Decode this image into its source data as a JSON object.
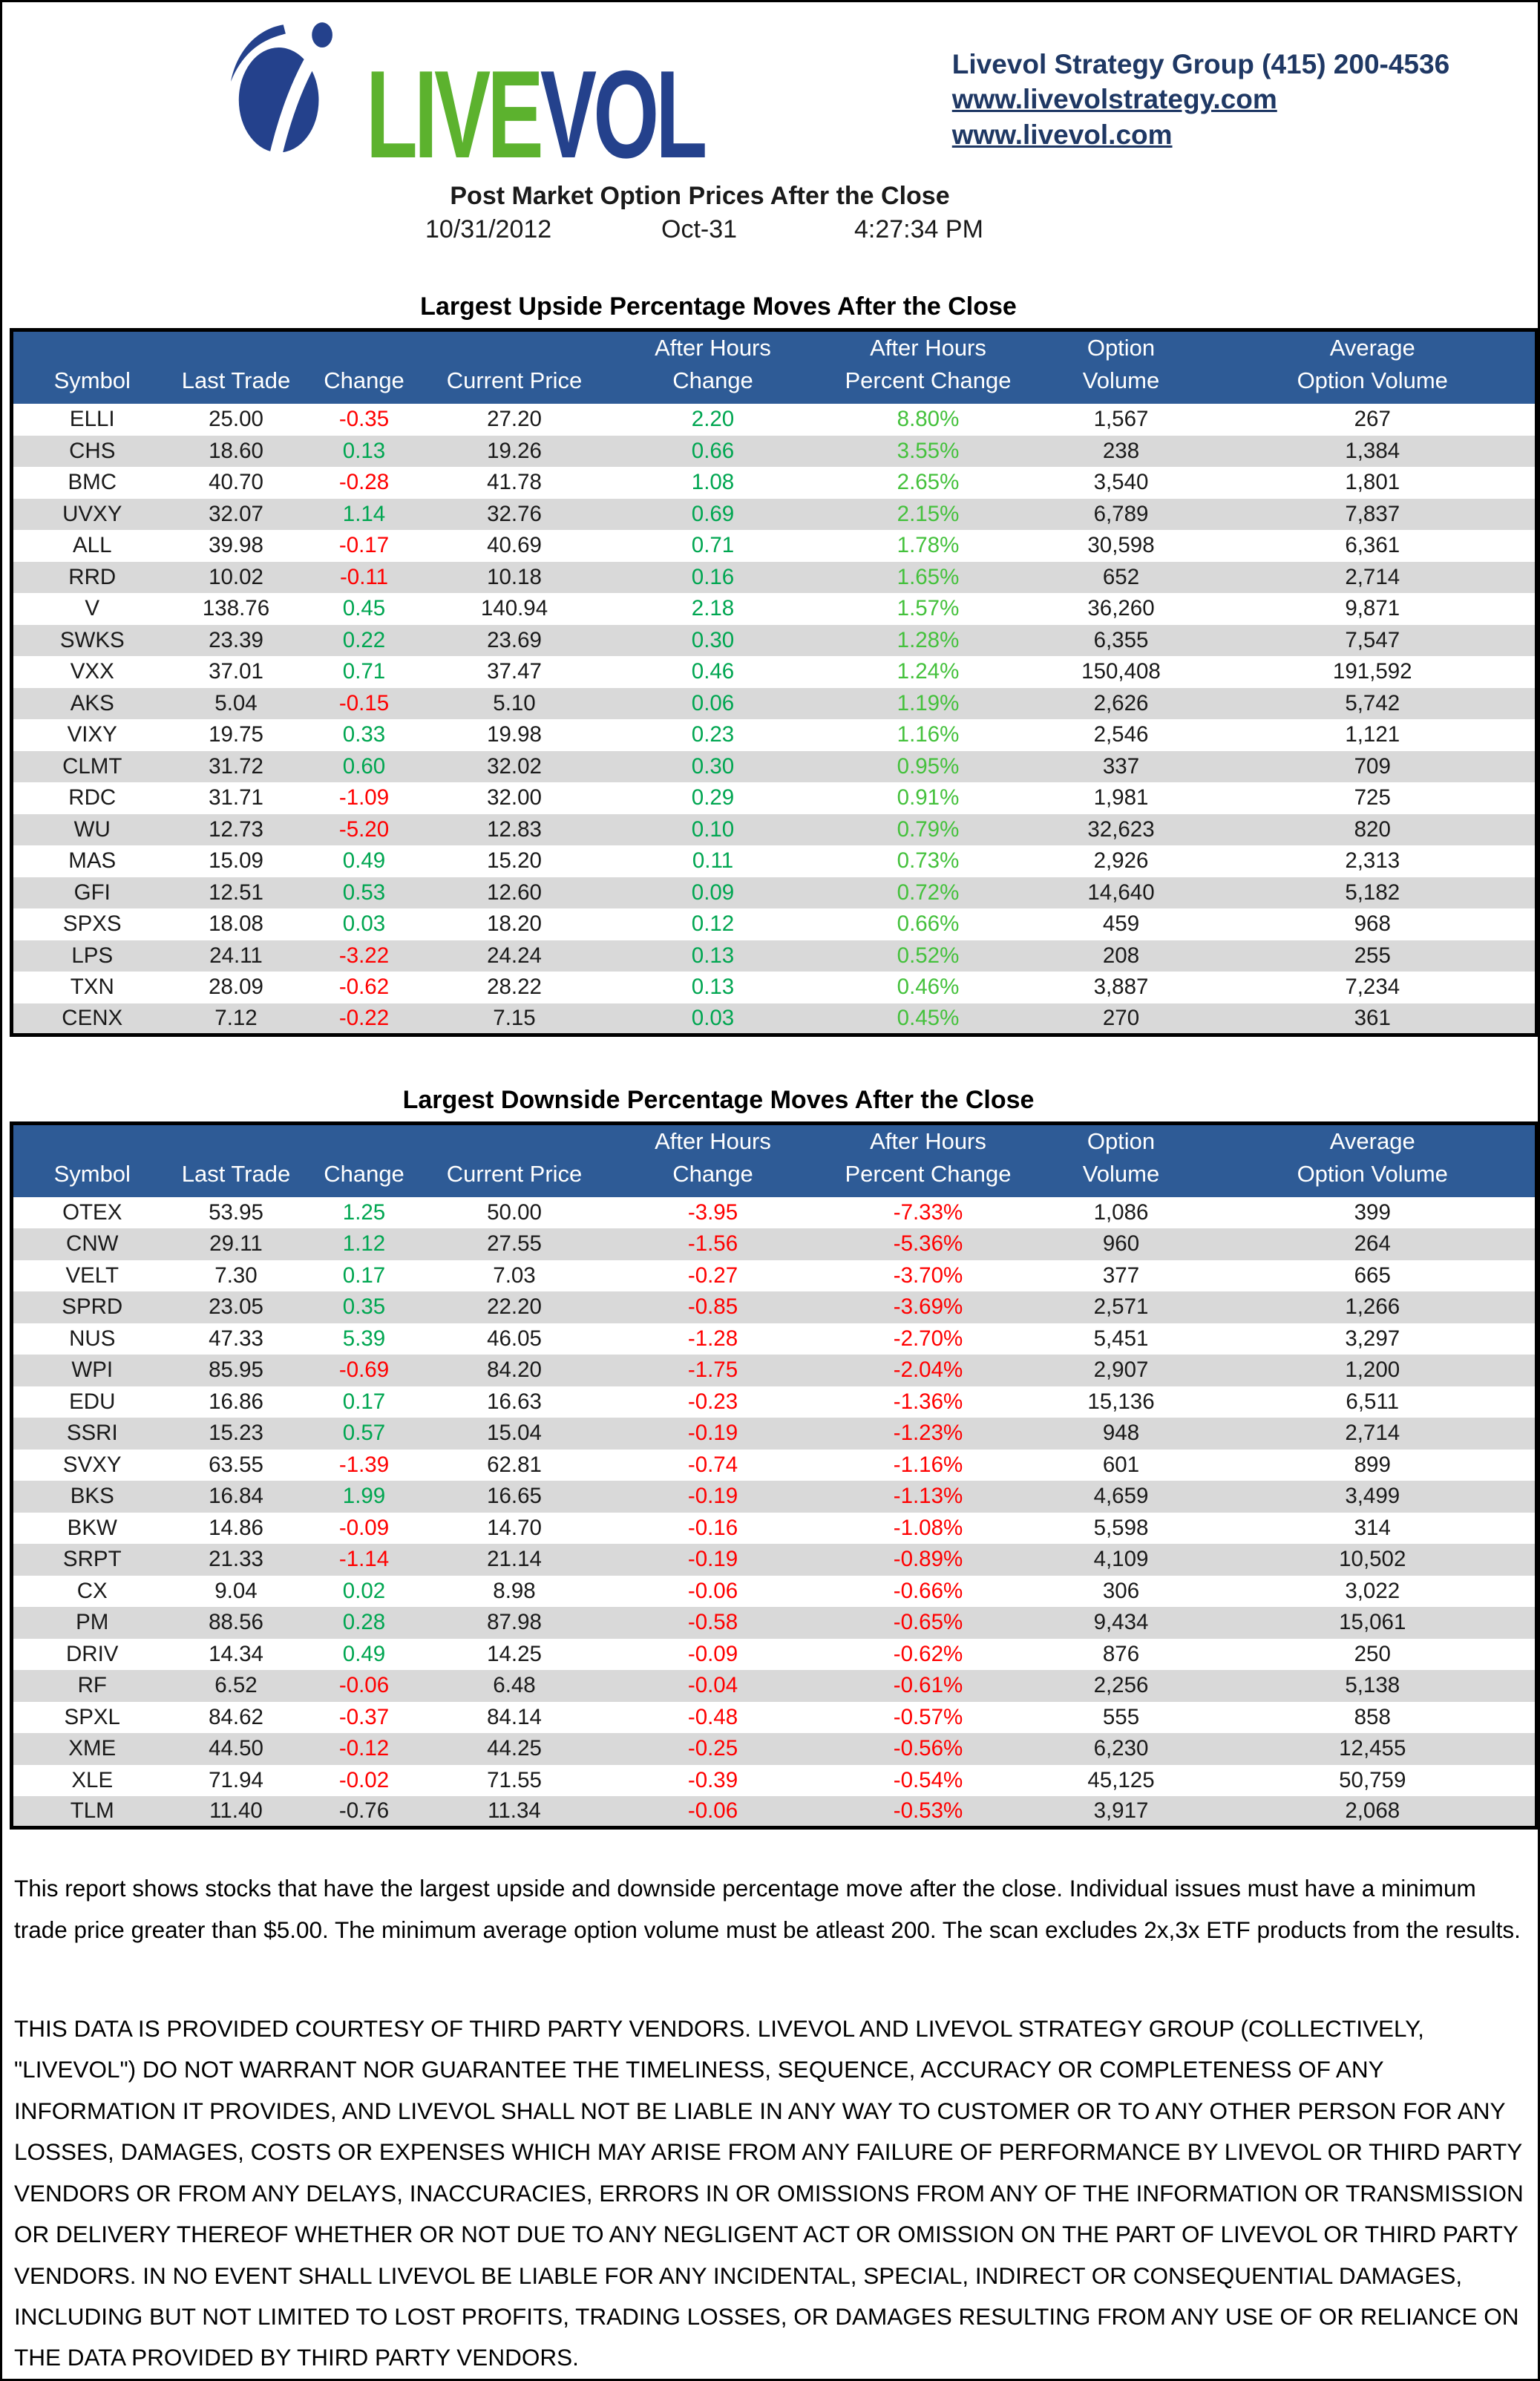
{
  "header": {
    "logo": {
      "live": "LIVE",
      "vol": "VOL"
    },
    "contact": {
      "line1": "Livevol Strategy Group (415) 200-4536",
      "link1": "www.livevolstrategy.com",
      "link2": "www.livevol.com"
    }
  },
  "report": {
    "title": "Post Market Option Prices After the Close",
    "date": "10/31/2012",
    "date_short": "Oct-31",
    "time": "4:27:34 PM"
  },
  "columns": [
    [
      "",
      "Symbol"
    ],
    [
      "",
      "Last Trade"
    ],
    [
      "",
      "Change"
    ],
    [
      "",
      "Current Price"
    ],
    [
      "After Hours",
      "Change"
    ],
    [
      "After Hours",
      "Percent Change"
    ],
    [
      "Option",
      "Volume"
    ],
    [
      "Average",
      "Option Volume"
    ]
  ],
  "colors": {
    "red": "#FF0000",
    "green": "#00A651",
    "light_green": "#44C13C",
    "text": "#1A1A1A",
    "header_bg": "#2E5B96",
    "row_alt": "#D9D9D9",
    "navy": "#1F3864",
    "logo_green": "#5CB22E",
    "logo_navy": "#24418C"
  },
  "upside": {
    "title": "Largest Upside Percentage Moves After the Close",
    "ah": "green",
    "ahp": "light_green",
    "rows": [
      {
        "s": "ELLI",
        "lt": "25.00",
        "c": "-0.35",
        "cc": "r",
        "cp": "27.20",
        "ac": "2.20",
        "ap": "8.80%",
        "ov": "1,567",
        "av": "267"
      },
      {
        "s": "CHS",
        "lt": "18.60",
        "c": "0.13",
        "cc": "g",
        "cp": "19.26",
        "ac": "0.66",
        "ap": "3.55%",
        "ov": "238",
        "av": "1,384"
      },
      {
        "s": "BMC",
        "lt": "40.70",
        "c": "-0.28",
        "cc": "r",
        "cp": "41.78",
        "ac": "1.08",
        "ap": "2.65%",
        "ov": "3,540",
        "av": "1,801"
      },
      {
        "s": "UVXY",
        "lt": "32.07",
        "c": "1.14",
        "cc": "g",
        "cp": "32.76",
        "ac": "0.69",
        "ap": "2.15%",
        "ov": "6,789",
        "av": "7,837"
      },
      {
        "s": "ALL",
        "lt": "39.98",
        "c": "-0.17",
        "cc": "r",
        "cp": "40.69",
        "ac": "0.71",
        "ap": "1.78%",
        "ov": "30,598",
        "av": "6,361"
      },
      {
        "s": "RRD",
        "lt": "10.02",
        "c": "-0.11",
        "cc": "r",
        "cp": "10.18",
        "ac": "0.16",
        "ap": "1.65%",
        "ov": "652",
        "av": "2,714"
      },
      {
        "s": "V",
        "lt": "138.76",
        "c": "0.45",
        "cc": "g",
        "cp": "140.94",
        "ac": "2.18",
        "ap": "1.57%",
        "ov": "36,260",
        "av": "9,871"
      },
      {
        "s": "SWKS",
        "lt": "23.39",
        "c": "0.22",
        "cc": "g",
        "cp": "23.69",
        "ac": "0.30",
        "ap": "1.28%",
        "ov": "6,355",
        "av": "7,547"
      },
      {
        "s": "VXX",
        "lt": "37.01",
        "c": "0.71",
        "cc": "g",
        "cp": "37.47",
        "ac": "0.46",
        "ap": "1.24%",
        "ov": "150,408",
        "av": "191,592"
      },
      {
        "s": "AKS",
        "lt": "5.04",
        "c": "-0.15",
        "cc": "r",
        "cp": "5.10",
        "ac": "0.06",
        "ap": "1.19%",
        "ov": "2,626",
        "av": "5,742"
      },
      {
        "s": "VIXY",
        "lt": "19.75",
        "c": "0.33",
        "cc": "g",
        "cp": "19.98",
        "ac": "0.23",
        "ap": "1.16%",
        "ov": "2,546",
        "av": "1,121"
      },
      {
        "s": "CLMT",
        "lt": "31.72",
        "c": "0.60",
        "cc": "g",
        "cp": "32.02",
        "ac": "0.30",
        "ap": "0.95%",
        "ov": "337",
        "av": "709"
      },
      {
        "s": "RDC",
        "lt": "31.71",
        "c": "-1.09",
        "cc": "r",
        "cp": "32.00",
        "ac": "0.29",
        "ap": "0.91%",
        "ov": "1,981",
        "av": "725"
      },
      {
        "s": "WU",
        "lt": "12.73",
        "c": "-5.20",
        "cc": "r",
        "cp": "12.83",
        "ac": "0.10",
        "ap": "0.79%",
        "ov": "32,623",
        "av": "820"
      },
      {
        "s": "MAS",
        "lt": "15.09",
        "c": "0.49",
        "cc": "g",
        "cp": "15.20",
        "ac": "0.11",
        "ap": "0.73%",
        "ov": "2,926",
        "av": "2,313"
      },
      {
        "s": "GFI",
        "lt": "12.51",
        "c": "0.53",
        "cc": "g",
        "cp": "12.60",
        "ac": "0.09",
        "ap": "0.72%",
        "ov": "14,640",
        "av": "5,182"
      },
      {
        "s": "SPXS",
        "lt": "18.08",
        "c": "0.03",
        "cc": "g",
        "cp": "18.20",
        "ac": "0.12",
        "ap": "0.66%",
        "ov": "459",
        "av": "968"
      },
      {
        "s": "LPS",
        "lt": "24.11",
        "c": "-3.22",
        "cc": "r",
        "cp": "24.24",
        "ac": "0.13",
        "ap": "0.52%",
        "ov": "208",
        "av": "255"
      },
      {
        "s": "TXN",
        "lt": "28.09",
        "c": "-0.62",
        "cc": "r",
        "cp": "28.22",
        "ac": "0.13",
        "ap": "0.46%",
        "ov": "3,887",
        "av": "7,234"
      },
      {
        "s": "CENX",
        "lt": "7.12",
        "c": "-0.22",
        "cc": "r",
        "cp": "7.15",
        "ac": "0.03",
        "ap": "0.45%",
        "ov": "270",
        "av": "361"
      }
    ]
  },
  "downside": {
    "title": "Largest Downside Percentage Moves After the Close",
    "ah": "red",
    "ahp": "red",
    "rows": [
      {
        "s": "OTEX",
        "lt": "53.95",
        "c": "1.25",
        "cc": "g",
        "cp": "50.00",
        "ac": "-3.95",
        "ap": "-7.33%",
        "ov": "1,086",
        "av": "399"
      },
      {
        "s": "CNW",
        "lt": "29.11",
        "c": "1.12",
        "cc": "g",
        "cp": "27.55",
        "ac": "-1.56",
        "ap": "-5.36%",
        "ov": "960",
        "av": "264"
      },
      {
        "s": "VELT",
        "lt": "7.30",
        "c": "0.17",
        "cc": "g",
        "cp": "7.03",
        "ac": "-0.27",
        "ap": "-3.70%",
        "ov": "377",
        "av": "665"
      },
      {
        "s": "SPRD",
        "lt": "23.05",
        "c": "0.35",
        "cc": "g",
        "cp": "22.20",
        "ac": "-0.85",
        "ap": "-3.69%",
        "ov": "2,571",
        "av": "1,266"
      },
      {
        "s": "NUS",
        "lt": "47.33",
        "c": "5.39",
        "cc": "g",
        "cp": "46.05",
        "ac": "-1.28",
        "ap": "-2.70%",
        "ov": "5,451",
        "av": "3,297"
      },
      {
        "s": "WPI",
        "lt": "85.95",
        "c": "-0.69",
        "cc": "r",
        "cp": "84.20",
        "ac": "-1.75",
        "ap": "-2.04%",
        "ov": "2,907",
        "av": "1,200"
      },
      {
        "s": "EDU",
        "lt": "16.86",
        "c": "0.17",
        "cc": "g",
        "cp": "16.63",
        "ac": "-0.23",
        "ap": "-1.36%",
        "ov": "15,136",
        "av": "6,511"
      },
      {
        "s": "SSRI",
        "lt": "15.23",
        "c": "0.57",
        "cc": "g",
        "cp": "15.04",
        "ac": "-0.19",
        "ap": "-1.23%",
        "ov": "948",
        "av": "2,714"
      },
      {
        "s": "SVXY",
        "lt": "63.55",
        "c": "-1.39",
        "cc": "r",
        "cp": "62.81",
        "ac": "-0.74",
        "ap": "-1.16%",
        "ov": "601",
        "av": "899"
      },
      {
        "s": "BKS",
        "lt": "16.84",
        "c": "1.99",
        "cc": "g",
        "cp": "16.65",
        "ac": "-0.19",
        "ap": "-1.13%",
        "ov": "4,659",
        "av": "3,499"
      },
      {
        "s": "BKW",
        "lt": "14.86",
        "c": "-0.09",
        "cc": "r",
        "cp": "14.70",
        "ac": "-0.16",
        "ap": "-1.08%",
        "ov": "5,598",
        "av": "314"
      },
      {
        "s": "SRPT",
        "lt": "21.33",
        "c": "-1.14",
        "cc": "r",
        "cp": "21.14",
        "ac": "-0.19",
        "ap": "-0.89%",
        "ov": "4,109",
        "av": "10,502"
      },
      {
        "s": "CX",
        "lt": "9.04",
        "c": "0.02",
        "cc": "g",
        "cp": "8.98",
        "ac": "-0.06",
        "ap": "-0.66%",
        "ov": "306",
        "av": "3,022"
      },
      {
        "s": "PM",
        "lt": "88.56",
        "c": "0.28",
        "cc": "g",
        "cp": "87.98",
        "ac": "-0.58",
        "ap": "-0.65%",
        "ov": "9,434",
        "av": "15,061"
      },
      {
        "s": "DRIV",
        "lt": "14.34",
        "c": "0.49",
        "cc": "g",
        "cp": "14.25",
        "ac": "-0.09",
        "ap": "-0.62%",
        "ov": "876",
        "av": "250"
      },
      {
        "s": "RF",
        "lt": "6.52",
        "c": "-0.06",
        "cc": "r",
        "cp": "6.48",
        "ac": "-0.04",
        "ap": "-0.61%",
        "ov": "2,256",
        "av": "5,138"
      },
      {
        "s": "SPXL",
        "lt": "84.62",
        "c": "-0.37",
        "cc": "r",
        "cp": "84.14",
        "ac": "-0.48",
        "ap": "-0.57%",
        "ov": "555",
        "av": "858"
      },
      {
        "s": "XME",
        "lt": "44.50",
        "c": "-0.12",
        "cc": "r",
        "cp": "44.25",
        "ac": "-0.25",
        "ap": "-0.56%",
        "ov": "6,230",
        "av": "12,455"
      },
      {
        "s": "XLE",
        "lt": "71.94",
        "c": "-0.02",
        "cc": "r",
        "cp": "71.55",
        "ac": "-0.39",
        "ap": "-0.54%",
        "ov": "45,125",
        "av": "50,759"
      },
      {
        "s": "TLM",
        "lt": "11.40",
        "c": "-0.76",
        "cc": "k",
        "cp": "11.34",
        "ac": "-0.06",
        "ap": "-0.53%",
        "ov": "3,917",
        "av": "2,068"
      }
    ]
  },
  "footer": {
    "para1": "This report shows stocks that have the largest upside and downside percentage move after the close. Individual issues must have a minimum trade price greater than $5.00. The minimum average option volume must be atleast 200.  The scan excludes 2x,3x ETF products from the results.",
    "disclaimer": "THIS DATA IS PROVIDED COURTESY OF THIRD PARTY VENDORS. LIVEVOL AND LIVEVOL STRATEGY GROUP (COLLECTIVELY, \"LIVEVOL\") DO NOT WARRANT NOR GUARANTEE THE TIMELINESS, SEQUENCE, ACCURACY OR COMPLETENESS OF ANY INFORMATION IT PROVIDES, AND LIVEVOL SHALL NOT BE LIABLE IN ANY WAY TO CUSTOMER OR TO ANY OTHER PERSON FOR ANY LOSSES, DAMAGES, COSTS OR EXPENSES WHICH MAY ARISE FROM ANY FAILURE OF PERFORMANCE BY LIVEVOL OR THIRD PARTY VENDORS OR FROM ANY DELAYS, INACCURACIES, ERRORS IN OR OMISSIONS FROM ANY OF THE INFORMATION OR TRANSMISSION OR DELIVERY THEREOF WHETHER OR NOT DUE TO ANY NEGLIGENT ACT OR OMISSION ON THE PART OF LIVEVOL OR THIRD PARTY VENDORS. IN NO EVENT SHALL LIVEVOL BE LIABLE FOR ANY INCIDENTAL, SPECIAL, INDIRECT OR CONSEQUENTIAL DAMAGES, INCLUDING BUT NOT LIMITED TO LOST PROFITS, TRADING LOSSES, OR DAMAGES RESULTING FROM ANY USE OF OR RELIANCE ON THE DATA PROVIDED BY THIRD PARTY VENDORS."
  }
}
